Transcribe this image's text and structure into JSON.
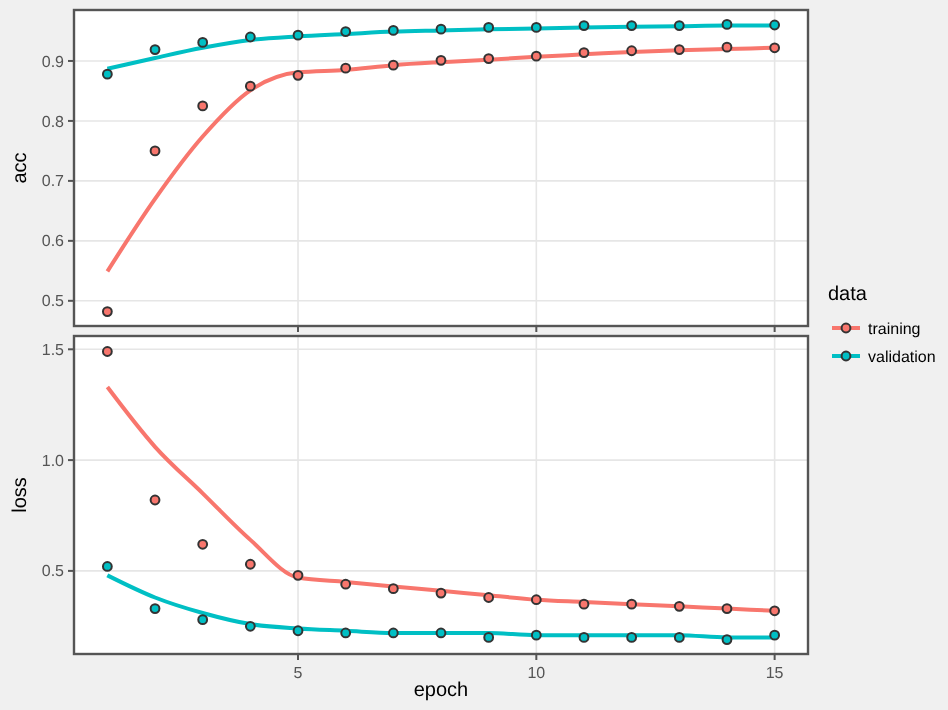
{
  "chart_data": [
    {
      "type": "scatter",
      "ylabel": "acc",
      "legend_title": "data",
      "legend": "right",
      "grid": true,
      "tick_labels": "y",
      "marker": "circle",
      "x": [
        1,
        2,
        3,
        4,
        5,
        6,
        7,
        8,
        9,
        10,
        11,
        12,
        13,
        14,
        15
      ],
      "xlim": [
        0.3,
        15.7
      ],
      "xticks": [
        5,
        10,
        15
      ],
      "ylim": [
        0.458,
        0.985
      ],
      "yticks": [
        0.5,
        0.6,
        0.7,
        0.8,
        0.9
      ],
      "series": [
        {
          "name": "training",
          "color": "#f8766d",
          "values": [
            0.482,
            0.75,
            0.825,
            0.858,
            0.876,
            0.888,
            0.893,
            0.901,
            0.904,
            0.908,
            0.914,
            0.917,
            0.919,
            0.923,
            0.922
          ]
        },
        {
          "name": "validation",
          "color": "#00bfc4",
          "values": [
            0.878,
            0.919,
            0.931,
            0.94,
            0.943,
            0.949,
            0.951,
            0.953,
            0.956,
            0.956,
            0.959,
            0.959,
            0.959,
            0.961,
            0.96
          ]
        },
        {
          "type": "line",
          "marker": "none",
          "color": "#f8766d",
          "values": [
            0.549,
            0.67,
            0.774,
            0.851,
            0.881,
            0.885,
            0.893,
            0.898,
            0.902,
            0.907,
            0.911,
            0.915,
            0.918,
            0.92,
            0.922
          ]
        },
        {
          "type": "line",
          "marker": "none",
          "color": "#00bfc4",
          "values": [
            0.887,
            0.905,
            0.922,
            0.935,
            0.941,
            0.945,
            0.949,
            0.951,
            0.953,
            0.954,
            0.956,
            0.957,
            0.958,
            0.959,
            0.959
          ]
        }
      ]
    },
    {
      "type": "scatter",
      "ylabel": "loss",
      "xlabel": "epoch",
      "grid": true,
      "marker": "circle",
      "x": [
        1,
        2,
        3,
        4,
        5,
        6,
        7,
        8,
        9,
        10,
        11,
        12,
        13,
        14,
        15
      ],
      "xlim": [
        0.3,
        15.7
      ],
      "xticks": [
        5,
        10,
        15
      ],
      "ylim": [
        0.125,
        1.56
      ],
      "yticks": [
        {
          "value": 0.5,
          "label": "0.5"
        },
        {
          "value": 1,
          "label": "1.0"
        },
        {
          "value": 1.5,
          "label": "1.5"
        }
      ],
      "series": [
        {
          "color": "#f8766d",
          "values": [
            1.49,
            0.82,
            0.62,
            0.53,
            0.48,
            0.44,
            0.42,
            0.4,
            0.38,
            0.37,
            0.35,
            0.35,
            0.34,
            0.33,
            0.32
          ]
        },
        {
          "color": "#00bfc4",
          "values": [
            0.52,
            0.33,
            0.28,
            0.25,
            0.23,
            0.22,
            0.22,
            0.22,
            0.2,
            0.21,
            0.2,
            0.2,
            0.2,
            0.19,
            0.21
          ]
        },
        {
          "type": "line",
          "marker": "none",
          "color": "#f8766d",
          "values": [
            1.33,
            1.06,
            0.85,
            0.64,
            0.47,
            0.45,
            0.43,
            0.41,
            0.39,
            0.37,
            0.36,
            0.35,
            0.34,
            0.33,
            0.32
          ]
        },
        {
          "type": "line",
          "marker": "none",
          "color": "#00bfc4",
          "values": [
            0.48,
            0.38,
            0.31,
            0.26,
            0.24,
            0.23,
            0.22,
            0.22,
            0.22,
            0.21,
            0.21,
            0.21,
            0.21,
            0.2,
            0.2
          ]
        }
      ]
    }
  ]
}
